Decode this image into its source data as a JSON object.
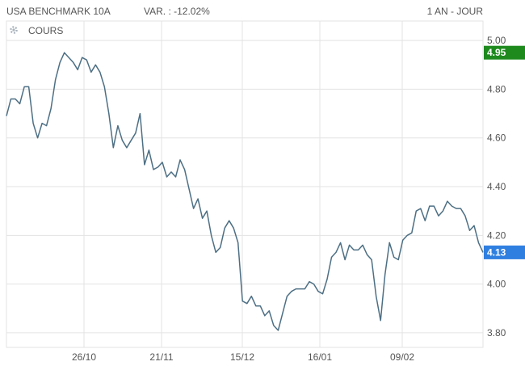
{
  "header": {
    "title": "USA BENCHMARK 10A",
    "variation": "VAR. : -12.02%",
    "range": "1 AN - JOUR"
  },
  "legend": {
    "icon": "gear-icon",
    "label": "COURS"
  },
  "colors": {
    "line": "#4d6f84",
    "grid": "#e3e3e3",
    "high_badge": "#1e8a1e",
    "last_badge": "#2f7fe0"
  },
  "chart_data": {
    "type": "line",
    "series": [
      {
        "name": "COURS",
        "values": [
          4.69,
          4.76,
          4.76,
          4.74,
          4.81,
          4.81,
          4.66,
          4.6,
          4.66,
          4.65,
          4.72,
          4.84,
          4.91,
          4.95,
          4.93,
          4.91,
          4.88,
          4.93,
          4.92,
          4.87,
          4.9,
          4.87,
          4.81,
          4.7,
          4.56,
          4.65,
          4.59,
          4.56,
          4.59,
          4.62,
          4.7,
          4.49,
          4.55,
          4.47,
          4.48,
          4.5,
          4.44,
          4.46,
          4.44,
          4.51,
          4.47,
          4.39,
          4.31,
          4.35,
          4.27,
          4.3,
          4.2,
          4.13,
          4.15,
          4.23,
          4.26,
          4.23,
          4.17,
          3.93,
          3.92,
          3.95,
          3.91,
          3.91,
          3.87,
          3.89,
          3.83,
          3.81,
          3.88,
          3.95,
          3.97,
          3.98,
          3.98,
          3.98,
          4.01,
          4.0,
          3.97,
          3.96,
          4.02,
          4.11,
          4.13,
          4.17,
          4.1,
          4.16,
          4.14,
          4.14,
          4.16,
          4.12,
          4.1,
          3.95,
          3.85,
          4.04,
          4.17,
          4.11,
          4.1,
          4.18,
          4.2,
          4.21,
          4.3,
          4.31,
          4.26,
          4.32,
          4.32,
          4.28,
          4.3,
          4.34,
          4.32,
          4.31,
          4.31,
          4.28,
          4.22,
          4.24,
          4.17,
          4.13
        ]
      }
    ],
    "x_ticks": [
      "26/10",
      "21/11",
      "15/12",
      "16/01",
      "09/02"
    ],
    "y_ticks": [
      "5.00",
      "4.80",
      "4.60",
      "4.40",
      "4.20",
      "4.00",
      "3.80"
    ],
    "ylim": [
      3.74,
      5.08
    ],
    "high_label": "4.95",
    "last_label": "4.13",
    "grid": true
  }
}
